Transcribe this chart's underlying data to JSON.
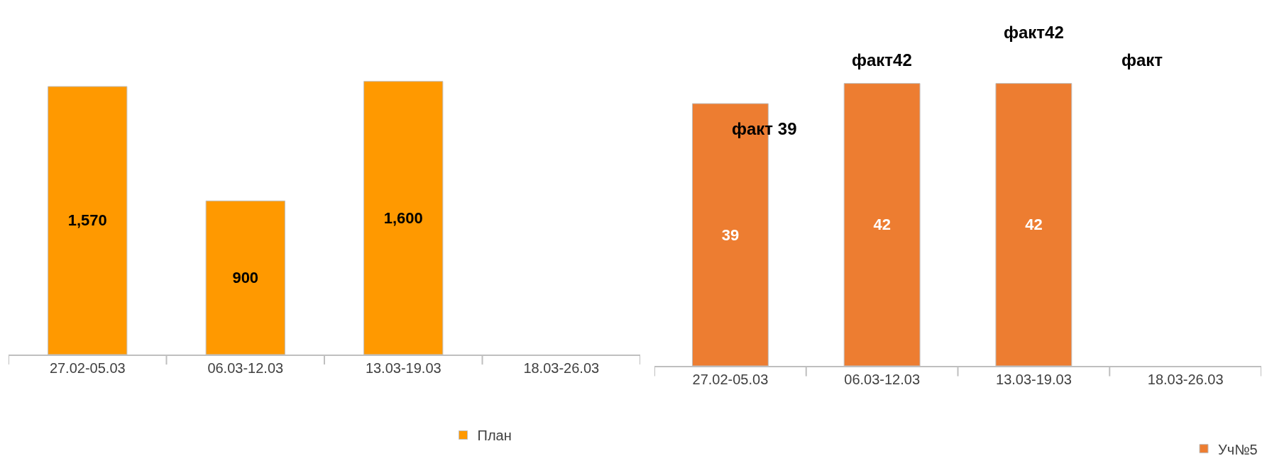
{
  "chart_data": [
    {
      "type": "bar",
      "categories": [
        "27.02-05.03",
        "06.03-12.03",
        "13.03-19.03",
        "18.03-26.03"
      ],
      "series": [
        {
          "name": "План",
          "color": "#ff9900",
          "values": [
            1570,
            900,
            1600,
            null
          ],
          "value_labels": [
            "1,570",
            "900",
            "1,600",
            null
          ]
        }
      ],
      "legend": "bottom"
    },
    {
      "type": "bar",
      "categories": [
        "27.02-05.03",
        "06.03-12.03",
        "13.03-19.03",
        "18.03-26.03"
      ],
      "series": [
        {
          "name": "Уч№5",
          "color": "#ed7d31",
          "values": [
            39,
            42,
            42,
            null
          ],
          "value_labels": [
            "39",
            "42",
            "42",
            null
          ]
        }
      ],
      "legend": "bottom right",
      "annotations": [
        "факт 39",
        "факт42",
        "факт42",
        "факт"
      ]
    }
  ]
}
